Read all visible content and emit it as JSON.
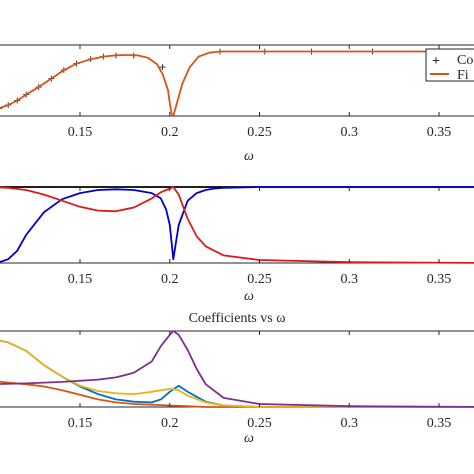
{
  "chart_data": [
    {
      "type": "line",
      "title": "",
      "xlabel": "ω",
      "ylabel": "",
      "xlim": [
        0.1,
        0.38
      ],
      "ylim": [
        0.0,
        1.1
      ],
      "xticks": [
        0.15,
        0.2,
        0.25,
        0.3,
        0.35
      ],
      "xtick_labels": [
        "0.15",
        "0.2",
        "0.25",
        "0.3",
        "0.35"
      ],
      "legend": {
        "placement": "top-right",
        "entries": [
          "Co",
          "Fi"
        ]
      },
      "series": [
        {
          "name": "Co",
          "style": "markers",
          "color": "#0072BD",
          "x": [
            0.1,
            0.105,
            0.11,
            0.115,
            0.12,
            0.127,
            0.134,
            0.141,
            0.148,
            0.156,
            0.163,
            0.17,
            0.18,
            0.196,
            0.228,
            0.253,
            0.279,
            0.313,
            0.348
          ],
          "y": [
            0.09,
            0.12,
            0.17,
            0.24,
            0.33,
            0.45,
            0.58,
            0.71,
            0.81,
            0.88,
            0.92,
            0.94,
            0.94,
            0.76,
            1.0,
            1.0,
            1.0,
            1.0,
            1.0
          ]
        },
        {
          "name": "Fi",
          "style": "line",
          "color": "#D95319",
          "x": [
            0.1,
            0.105,
            0.11,
            0.115,
            0.12,
            0.127,
            0.134,
            0.141,
            0.148,
            0.156,
            0.163,
            0.17,
            0.176,
            0.182,
            0.188,
            0.193,
            0.196,
            0.199,
            0.2,
            0.201,
            0.202,
            0.204,
            0.207,
            0.211,
            0.216,
            0.222,
            0.228,
            0.24,
            0.26,
            0.3,
            0.34,
            0.38
          ],
          "y": [
            0.09,
            0.12,
            0.17,
            0.24,
            0.33,
            0.45,
            0.58,
            0.71,
            0.81,
            0.88,
            0.92,
            0.94,
            0.945,
            0.94,
            0.9,
            0.8,
            0.65,
            0.4,
            0.2,
            0.04,
            0.0,
            0.2,
            0.5,
            0.75,
            0.92,
            0.98,
            1.0,
            1.0,
            1.0,
            1.0,
            1.0,
            1.0
          ]
        }
      ]
    },
    {
      "type": "line",
      "title": "",
      "xlabel": "ω",
      "ylabel": "",
      "xlim": [
        0.1,
        0.38
      ],
      "ylim": [
        0.0,
        1.0
      ],
      "xticks": [
        0.15,
        0.2,
        0.25,
        0.3,
        0.35
      ],
      "xtick_labels": [
        "0.15",
        "0.2",
        "0.25",
        "0.3",
        "0.35"
      ],
      "series": [
        {
          "color": "#000000",
          "x": [
            0.1,
            0.38
          ],
          "y": [
            1.0,
            1.0
          ]
        },
        {
          "color": "#0000C8",
          "x": [
            0.1,
            0.105,
            0.11,
            0.115,
            0.12,
            0.13,
            0.14,
            0.15,
            0.16,
            0.17,
            0.18,
            0.19,
            0.195,
            0.198,
            0.2,
            0.202,
            0.205,
            0.21,
            0.215,
            0.22,
            0.225,
            0.23,
            0.25,
            0.3,
            0.38
          ],
          "y": [
            0.0,
            0.01,
            0.05,
            0.16,
            0.37,
            0.67,
            0.84,
            0.92,
            0.96,
            0.97,
            0.96,
            0.92,
            0.85,
            0.7,
            0.5,
            0.05,
            0.5,
            0.82,
            0.92,
            0.96,
            0.98,
            0.99,
            1.0,
            1.0,
            1.0
          ]
        },
        {
          "color": "#D81B1B",
          "x": [
            0.1,
            0.11,
            0.12,
            0.13,
            0.14,
            0.15,
            0.16,
            0.17,
            0.18,
            0.19,
            0.195,
            0.2,
            0.202,
            0.205,
            0.21,
            0.215,
            0.22,
            0.23,
            0.25,
            0.3,
            0.38
          ],
          "y": [
            1.0,
            0.99,
            0.96,
            0.9,
            0.82,
            0.74,
            0.69,
            0.68,
            0.73,
            0.85,
            0.93,
            0.98,
            1.0,
            0.9,
            0.58,
            0.35,
            0.22,
            0.1,
            0.04,
            0.01,
            0.0
          ]
        }
      ]
    },
    {
      "type": "line",
      "title": "Coefficients vs ω",
      "xlabel": "ω",
      "ylabel": "",
      "xlim": [
        0.1,
        0.38
      ],
      "ylim": [
        0.0,
        1.0
      ],
      "xticks": [
        0.15,
        0.2,
        0.25,
        0.3,
        0.35
      ],
      "xtick_labels": [
        "0.15",
        "0.2",
        "0.25",
        "0.3",
        "0.35"
      ],
      "series": [
        {
          "color": "#0072BD",
          "x": [
            0.1,
            0.11,
            0.12,
            0.13,
            0.14,
            0.15,
            0.16,
            0.17,
            0.18,
            0.19,
            0.195,
            0.2,
            0.205,
            0.21,
            0.22,
            0.23,
            0.25,
            0.3,
            0.38
          ],
          "y": [
            0.9,
            0.85,
            0.74,
            0.55,
            0.4,
            0.27,
            0.17,
            0.1,
            0.07,
            0.06,
            0.1,
            0.2,
            0.28,
            0.2,
            0.07,
            0.02,
            0.0,
            0.0,
            0.0
          ]
        },
        {
          "color": "#D95319",
          "x": [
            0.1,
            0.11,
            0.12,
            0.13,
            0.14,
            0.15,
            0.16,
            0.17,
            0.18,
            0.19,
            0.2,
            0.21,
            0.22,
            0.25,
            0.3,
            0.38
          ],
          "y": [
            0.35,
            0.32,
            0.3,
            0.27,
            0.22,
            0.16,
            0.1,
            0.06,
            0.04,
            0.03,
            0.02,
            0.01,
            0.0,
            0.0,
            0.0,
            0.0
          ]
        },
        {
          "color": "#EDB120",
          "x": [
            0.1,
            0.11,
            0.12,
            0.13,
            0.14,
            0.15,
            0.16,
            0.17,
            0.18,
            0.19,
            0.2,
            0.205,
            0.21,
            0.22,
            0.23,
            0.25,
            0.3,
            0.38
          ],
          "y": [
            0.9,
            0.85,
            0.74,
            0.55,
            0.4,
            0.28,
            0.21,
            0.18,
            0.17,
            0.2,
            0.24,
            0.22,
            0.15,
            0.06,
            0.02,
            0.0,
            0.0,
            0.0
          ]
        },
        {
          "color": "#7E2F8E",
          "x": [
            0.1,
            0.12,
            0.14,
            0.16,
            0.17,
            0.18,
            0.19,
            0.195,
            0.2,
            0.202,
            0.205,
            0.21,
            0.215,
            0.22,
            0.23,
            0.25,
            0.3,
            0.38
          ],
          "y": [
            0.3,
            0.31,
            0.33,
            0.36,
            0.39,
            0.45,
            0.6,
            0.8,
            0.95,
            1.0,
            0.95,
            0.75,
            0.5,
            0.3,
            0.12,
            0.04,
            0.01,
            0.0
          ]
        }
      ]
    }
  ]
}
